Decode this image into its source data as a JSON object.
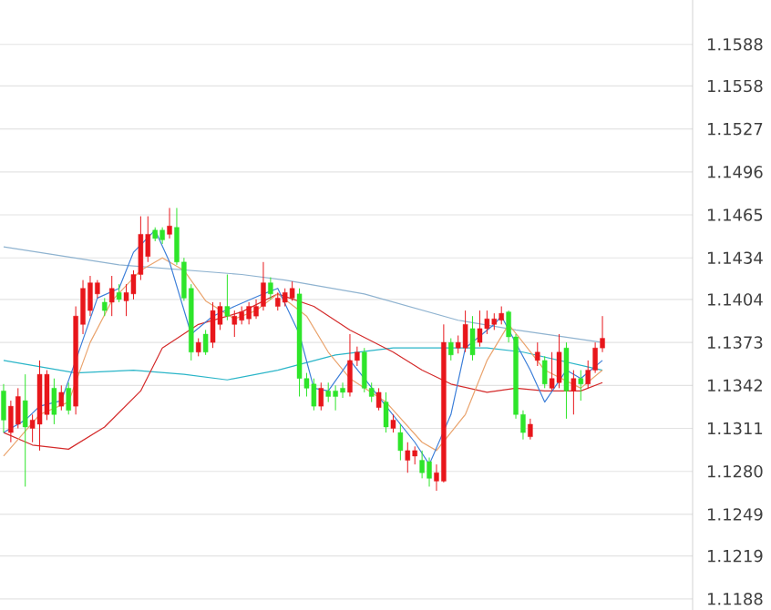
{
  "chart_data": {
    "type": "candlestick",
    "categories": [
      null,
      null,
      null,
      null,
      null,
      null,
      null,
      null,
      null,
      null,
      null,
      null,
      null,
      null,
      null,
      null,
      null,
      null,
      null,
      null,
      null,
      null,
      null,
      null,
      null,
      null,
      null,
      null,
      null,
      null,
      null,
      null,
      null,
      null,
      null,
      null,
      null,
      null,
      null,
      null,
      null,
      null,
      null,
      null,
      null,
      null,
      null,
      null,
      null,
      null,
      null,
      null,
      null,
      null,
      null,
      null,
      null,
      null,
      null,
      null,
      null,
      null,
      null,
      null,
      null,
      null,
      null,
      null,
      null,
      null,
      null,
      null,
      null,
      null,
      null,
      null,
      null,
      null,
      null,
      null,
      null,
      null,
      null,
      null,
      null,
      null,
      null,
      null,
      null,
      null,
      null,
      null,
      null,
      null,
      null,
      null
    ],
    "ohlc": [
      [
        1.1338,
        1.1343,
        1.1308,
        1.1317
      ],
      [
        1.1308,
        1.1331,
        1.1301,
        1.1327
      ],
      [
        1.1314,
        1.134,
        1.1311,
        1.1334
      ],
      [
        1.1331,
        1.135,
        1.1269,
        1.1312
      ],
      [
        1.1311,
        1.1321,
        1.1301,
        1.1317
      ],
      [
        1.1314,
        1.136,
        1.1295,
        1.135
      ],
      [
        1.1321,
        1.1353,
        1.1317,
        1.135
      ],
      [
        1.134,
        1.1347,
        1.1314,
        1.1321
      ],
      [
        1.1327,
        1.1342,
        1.1324,
        1.1337
      ],
      [
        1.134,
        1.1344,
        1.1321,
        1.1324
      ],
      [
        1.1327,
        1.1399,
        1.1321,
        1.1392
      ],
      [
        1.1386,
        1.1418,
        1.1379,
        1.1412
      ],
      [
        1.1396,
        1.1421,
        1.1392,
        1.1416
      ],
      [
        1.1408,
        1.1418,
        1.1405,
        1.1416
      ],
      [
        1.1402,
        1.1405,
        1.1392,
        1.1396
      ],
      [
        1.1402,
        1.1421,
        1.1392,
        1.1412
      ],
      [
        1.1409,
        1.1415,
        1.1402,
        1.1404
      ],
      [
        1.1403,
        1.1415,
        1.1392,
        1.1409
      ],
      [
        1.1408,
        1.1425,
        1.1404,
        1.1422
      ],
      [
        1.1422,
        1.1464,
        1.1418,
        1.1451
      ],
      [
        1.1435,
        1.1464,
        1.1431,
        1.1451
      ],
      [
        1.1454,
        1.1456,
        1.1446,
        1.1448
      ],
      [
        1.1454,
        1.1456,
        1.1444,
        1.1447
      ],
      [
        1.1451,
        1.147,
        1.1448,
        1.1457
      ],
      [
        1.1456,
        1.147,
        1.1429,
        1.1431
      ],
      [
        1.1431,
        1.1434,
        1.1403,
        1.1405
      ],
      [
        1.1412,
        1.1415,
        1.136,
        1.1366
      ],
      [
        1.1366,
        1.1376,
        1.1363,
        1.1373
      ],
      [
        1.1379,
        1.1382,
        1.1364,
        1.1366
      ],
      [
        1.1373,
        1.1402,
        1.1369,
        1.1396
      ],
      [
        1.1386,
        1.1402,
        1.1382,
        1.1399
      ],
      [
        1.1399,
        1.1422,
        1.1389,
        1.1392
      ],
      [
        1.1386,
        1.1396,
        1.1377,
        1.1392
      ],
      [
        1.1389,
        1.1399,
        1.1386,
        1.1395
      ],
      [
        1.139,
        1.1402,
        1.1386,
        1.1399
      ],
      [
        1.1392,
        1.1404,
        1.139,
        1.1399
      ],
      [
        1.1399,
        1.1431,
        1.1396,
        1.1416
      ],
      [
        1.1416,
        1.142,
        1.1404,
        1.1408
      ],
      [
        1.1399,
        1.1409,
        1.1396,
        1.1405
      ],
      [
        1.1402,
        1.1412,
        1.1399,
        1.1409
      ],
      [
        1.1405,
        1.1417,
        1.1403,
        1.1412
      ],
      [
        1.1408,
        1.1412,
        1.1334,
        1.1347
      ],
      [
        1.1347,
        1.1351,
        1.1334,
        1.134
      ],
      [
        1.1343,
        1.1347,
        1.1324,
        1.1327
      ],
      [
        1.1327,
        1.1344,
        1.1324,
        1.134
      ],
      [
        1.1338,
        1.1344,
        1.133,
        1.1334
      ],
      [
        1.1338,
        1.1342,
        1.1324,
        1.1334
      ],
      [
        1.134,
        1.1344,
        1.1333,
        1.1337
      ],
      [
        1.1337,
        1.1379,
        1.1334,
        1.136
      ],
      [
        1.136,
        1.137,
        1.1356,
        1.1366
      ],
      [
        1.1366,
        1.1369,
        1.1337,
        1.134
      ],
      [
        1.134,
        1.1344,
        1.133,
        1.1334
      ],
      [
        1.1326,
        1.134,
        1.1324,
        1.1337
      ],
      [
        1.133,
        1.1337,
        1.1308,
        1.1312
      ],
      [
        1.1311,
        1.1321,
        1.1308,
        1.1317
      ],
      [
        1.1308,
        1.1314,
        1.1288,
        1.1295
      ],
      [
        1.1288,
        1.1301,
        1.1279,
        1.1295
      ],
      [
        1.1291,
        1.1298,
        1.1285,
        1.1295
      ],
      [
        1.1288,
        1.1295,
        1.1275,
        1.1279
      ],
      [
        1.1287,
        1.129,
        1.1269,
        1.1275
      ],
      [
        1.1273,
        1.1285,
        1.1266,
        1.1279
      ],
      [
        1.1273,
        1.1386,
        1.1272,
        1.1373
      ],
      [
        1.1373,
        1.1376,
        1.136,
        1.1364
      ],
      [
        1.1369,
        1.1378,
        1.1365,
        1.1373
      ],
      [
        1.1369,
        1.1396,
        1.1366,
        1.1386
      ],
      [
        1.1383,
        1.1392,
        1.136,
        1.1364
      ],
      [
        1.1373,
        1.1396,
        1.137,
        1.1383
      ],
      [
        1.1383,
        1.1396,
        1.1379,
        1.139
      ],
      [
        1.1386,
        1.1394,
        1.1382,
        1.139
      ],
      [
        1.1389,
        1.1399,
        1.1386,
        1.1394
      ],
      [
        1.1395,
        1.1396,
        1.1373,
        1.1377
      ],
      [
        1.1377,
        1.1379,
        1.1318,
        1.1321
      ],
      [
        1.1321,
        1.1324,
        1.1303,
        1.1308
      ],
      [
        1.1305,
        1.1318,
        1.1303,
        1.1314
      ],
      [
        1.136,
        1.1373,
        1.1356,
        1.1366
      ],
      [
        1.136,
        1.1363,
        1.134,
        1.1343
      ],
      [
        1.134,
        1.1366,
        1.1338,
        1.1347
      ],
      [
        1.1344,
        1.1379,
        1.134,
        1.1366
      ],
      [
        1.1369,
        1.1373,
        1.1318,
        1.1338
      ],
      [
        1.1338,
        1.1353,
        1.1321,
        1.1347
      ],
      [
        1.1347,
        1.1353,
        1.1331,
        1.1343
      ],
      [
        1.1343,
        1.136,
        1.134,
        1.1353
      ],
      [
        1.1353,
        1.1373,
        1.1351,
        1.1369
      ],
      [
        1.1369,
        1.1392,
        1.1366,
        1.1376
      ],
      null,
      null,
      null,
      null,
      null,
      null,
      null,
      null,
      null,
      null,
      null,
      null
    ],
    "colors": [
      "#2ee52a",
      "#e8161b",
      "#e8161b",
      "#2ee52a",
      "#e8161b",
      "#e8161b",
      "#e8161b",
      "#2ee52a",
      "#e8161b",
      "#2ee52a",
      "#e8161b",
      "#e8161b",
      "#e8161b",
      "#e8161b",
      "#2ee52a",
      "#e8161b",
      "#2ee52a",
      "#e8161b",
      "#e8161b",
      "#e8161b",
      "#e8161b",
      "#2ee52a",
      "#2ee52a",
      "#e8161b",
      "#2ee52a",
      "#2ee52a",
      "#2ee52a",
      "#e8161b",
      "#2ee52a",
      "#e8161b",
      "#e8161b",
      "#2ee52a",
      "#e8161b",
      "#e8161b",
      "#e8161b",
      "#e8161b",
      "#e8161b",
      "#2ee52a",
      "#e8161b",
      "#e8161b",
      "#e8161b",
      "#2ee52a",
      "#2ee52a",
      "#2ee52a",
      "#e8161b",
      "#2ee52a",
      "#2ee52a",
      "#2ee52a",
      "#e8161b",
      "#e8161b",
      "#2ee52a",
      "#2ee52a",
      "#e8161b",
      "#2ee52a",
      "#e8161b",
      "#2ee52a",
      "#e8161b",
      "#e8161b",
      "#2ee52a",
      "#2ee52a",
      "#e8161b",
      "#e8161b",
      "#2ee52a",
      "#e8161b",
      "#e8161b",
      "#2ee52a",
      "#e8161b",
      "#e8161b",
      "#e8161b",
      "#e8161b",
      "#2ee52a",
      "#2ee52a",
      "#2ee52a",
      "#e8161b",
      "#e8161b",
      "#2ee52a",
      "#e8161b",
      "#e8161b",
      "#2ee52a",
      "#e8161b",
      "#2ee52a",
      "#e8161b",
      "#e8161b",
      "#e8161b",
      null,
      null,
      null,
      null,
      null,
      null,
      null,
      null,
      null,
      null,
      null,
      null
    ],
    "series": [
      {
        "type": "line",
        "color": "#8fb3d0",
        "values": [
          1.1442,
          null,
          null,
          null,
          null,
          null,
          null,
          null,
          null,
          null,
          null,
          null,
          null,
          null,
          null,
          null,
          1.1429,
          null,
          null,
          null,
          null,
          null,
          null,
          null,
          null,
          null,
          null,
          null,
          null,
          null,
          null,
          null,
          null,
          1.1422,
          null,
          null,
          null,
          null,
          null,
          1.1418,
          null,
          null,
          null,
          null,
          null,
          null,
          null,
          null,
          null,
          null,
          1.1408,
          null,
          null,
          null,
          null,
          null,
          null,
          null,
          null,
          null,
          null,
          null,
          null,
          1.1389,
          null,
          null,
          null,
          null,
          null,
          null,
          null,
          1.1382,
          null,
          null,
          null,
          null,
          null,
          null,
          null,
          null,
          null,
          null,
          null,
          1.1373,
          null,
          null,
          null,
          null,
          null,
          null,
          null,
          null,
          null,
          null,
          null,
          null
        ]
      },
      {
        "type": "line",
        "color": "#2ab5c8",
        "values": [
          1.136,
          null,
          null,
          null,
          null,
          null,
          null,
          null,
          null,
          null,
          1.1351,
          null,
          null,
          null,
          null,
          null,
          null,
          null,
          1.1353,
          null,
          null,
          null,
          null,
          null,
          null,
          1.135,
          null,
          null,
          null,
          null,
          null,
          1.1346,
          null,
          null,
          null,
          null,
          null,
          null,
          1.1353,
          null,
          null,
          null,
          null,
          null,
          null,
          null,
          1.1364,
          null,
          null,
          null,
          null,
          null,
          null,
          null,
          1.1369,
          null,
          null,
          null,
          null,
          null,
          1.1369,
          null,
          null,
          null,
          null,
          null,
          null,
          1.1369,
          null,
          null,
          null,
          null,
          1.1366,
          null,
          null,
          null,
          null,
          null,
          null,
          null,
          null,
          null,
          null,
          1.1353,
          null,
          null,
          null,
          null,
          null,
          null,
          null,
          null,
          null,
          null,
          null,
          null
        ]
      },
      {
        "type": "line",
        "color": "#d42a2a",
        "values": [
          1.1308,
          null,
          null,
          null,
          1.1299,
          null,
          null,
          null,
          null,
          1.1296,
          null,
          null,
          null,
          null,
          1.1312,
          null,
          null,
          null,
          null,
          1.1338,
          null,
          null,
          1.1369,
          null,
          null,
          null,
          null,
          1.1386,
          null,
          null,
          null,
          null,
          null,
          1.1395,
          null,
          null,
          null,
          null,
          1.1408,
          null,
          null,
          null,
          null,
          1.1399,
          null,
          null,
          null,
          null,
          1.1382,
          null,
          null,
          null,
          null,
          null,
          1.1366,
          null,
          null,
          null,
          1.1353,
          null,
          null,
          null,
          1.1343,
          null,
          null,
          null,
          null,
          1.1337,
          null,
          null,
          null,
          1.134,
          null,
          null,
          null,
          1.1338,
          null,
          null,
          null,
          null,
          1.1338,
          null,
          null,
          1.1344,
          null,
          null,
          null,
          null,
          null,
          null,
          null,
          null,
          null,
          null,
          null,
          null
        ]
      },
      {
        "type": "line",
        "color": "#eaa46e",
        "values": [
          1.1291,
          null,
          null,
          null,
          null,
          1.1321,
          null,
          null,
          null,
          1.133,
          null,
          null,
          1.1373,
          null,
          null,
          1.1403,
          null,
          null,
          null,
          1.1425,
          null,
          null,
          1.1434,
          null,
          null,
          1.1425,
          null,
          null,
          1.1403,
          null,
          null,
          null,
          1.139,
          null,
          null,
          1.1396,
          null,
          null,
          1.1408,
          null,
          null,
          null,
          1.1392,
          null,
          null,
          1.1366,
          null,
          null,
          1.1347,
          null,
          null,
          null,
          null,
          1.133,
          null,
          null,
          null,
          null,
          1.1301,
          null,
          1.1295,
          null,
          null,
          null,
          1.1321,
          null,
          null,
          1.136,
          null,
          null,
          1.1386,
          null,
          1.1373,
          null,
          null,
          1.1353,
          null,
          null,
          null,
          null,
          1.134,
          null,
          null,
          1.1353,
          null,
          null,
          null,
          null,
          null,
          null,
          null,
          null,
          null,
          null,
          null,
          null
        ]
      },
      {
        "type": "line",
        "color": "#3d7fd9",
        "values": [
          1.1308,
          null,
          null,
          1.1317,
          null,
          1.1327,
          null,
          null,
          1.1331,
          null,
          1.136,
          null,
          null,
          1.1405,
          null,
          null,
          1.1412,
          null,
          1.1438,
          null,
          null,
          1.1454,
          null,
          1.1431,
          null,
          null,
          1.1379,
          null,
          null,
          1.1392,
          null,
          null,
          1.1399,
          null,
          null,
          null,
          1.1408,
          null,
          1.1412,
          null,
          null,
          1.1379,
          null,
          1.134,
          null,
          1.1338,
          null,
          null,
          1.136,
          null,
          1.1347,
          null,
          null,
          1.1327,
          null,
          null,
          null,
          1.1301,
          null,
          1.1285,
          null,
          null,
          1.1321,
          null,
          1.1369,
          null,
          null,
          null,
          1.1386,
          1.1392,
          null,
          null,
          null,
          1.1353,
          null,
          1.133,
          null,
          null,
          1.1353,
          null,
          1.1347,
          null,
          null,
          1.136,
          null,
          null,
          null,
          null,
          null,
          null,
          null,
          null,
          null,
          null,
          null,
          null
        ]
      }
    ],
    "ylim": [
      1.118,
      1.162
    ],
    "yticks": [
      1.1188,
      1.1219,
      1.1249,
      {
        "value": 1.128,
        "label": "1.1280"
      },
      1.1311,
      1.1342,
      1.1373,
      1.1404,
      1.1434,
      1.1465,
      1.1496,
      1.1527,
      1.1558,
      1.1588
    ],
    "tick_labels": "y",
    "grid": "y"
  }
}
